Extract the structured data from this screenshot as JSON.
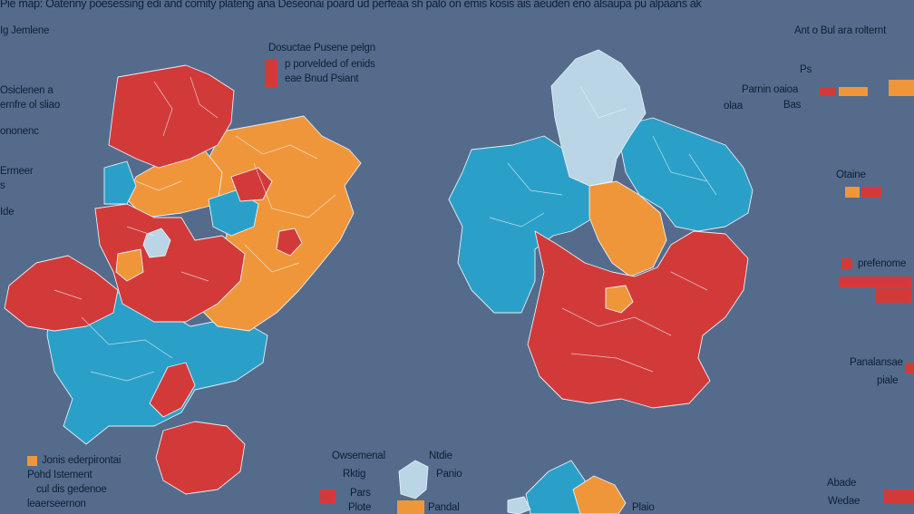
{
  "header": {
    "caption": "Pie map: Oatenny poesessing edi and comity plateng ana Deseonai poard ud perfeaa sh palo on emis kosis ais aeuden eno alsaupa pu alpaans ak"
  },
  "colors": {
    "background": "#546b8c",
    "red": "#d23a3a",
    "orange": "#f0963a",
    "blue": "#2aa0c8",
    "light_blue": "#b9d5e6",
    "text": "#0f1f33"
  },
  "left_panel": {
    "top_label": "Ig Jemlene",
    "side_notes": [
      "Osiclenen a",
      "ernfre ol sliao",
      "ononenc",
      "Ermeer",
      "s",
      "Ide"
    ],
    "legend_title": [
      "Dosuctae Pusene pelgn",
      "p porvelded of enids",
      "eae Bnud Psiant"
    ],
    "bottom_legend": [
      "Jonis ederpirontai",
      "Pohd Istement",
      "cul dis gedenoe",
      "leaerseernon"
    ]
  },
  "center": {
    "bottom_labels": [
      "Owsemenal",
      "Rktig",
      "Pars",
      "Plote",
      "Ntdie",
      "Panio",
      "Pandal",
      "Plaio"
    ]
  },
  "right_panel": {
    "top_label": "Ant o Bul ara rolternt",
    "legend_labels": [
      "Ps",
      "Parnin oaioa",
      "olaa",
      "Bas",
      "Otaine",
      "prefenome",
      "Panalansae",
      "piale",
      "Abade",
      "Wedae"
    ]
  },
  "map_legend": {
    "categories": [
      "Red",
      "Orange",
      "Blue",
      "Light blue"
    ]
  }
}
